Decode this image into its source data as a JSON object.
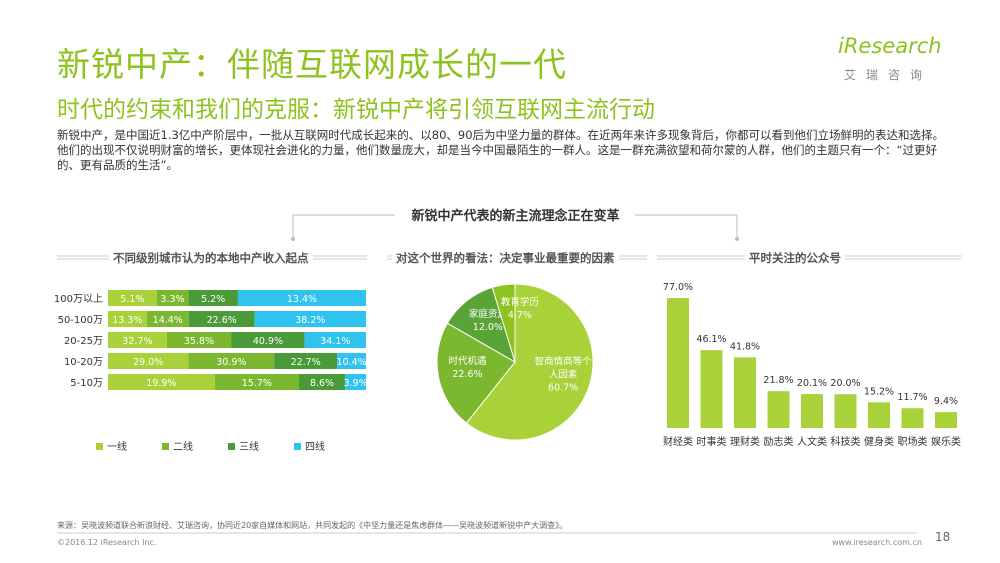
{
  "header": {
    "title": "新锐中产：伴随互联网成长的一代",
    "subtitle": "时代的约束和我们的克服：新锐中产将引领互联网主流行动",
    "logo_word": "iResearch",
    "logo_cn": "艾瑞咨询"
  },
  "intro": "新锐中产，是中国近1.3亿中产阶层中，一批从互联网时代成长起来的、以80、90后为中坚力量的群体。在近两年来许多现象背后，你都可以看到他们立场鲜明的表达和选择。他们的出现不仅说明财富的增长，更体现社会进化的力量，他们数量庞大，却是当今中国最陌生的一群人。这是一群充满欲望和荷尔蒙的人群，他们的主题只有一个：“过更好的、更有品质的生活”。",
  "center_heading": "新锐中产代表的新主流理念正在变革",
  "colors": {
    "tier1": "#a9d13a",
    "tier2": "#7cb82f",
    "tier3": "#4a9a38",
    "tier4": "#30c3f0",
    "accent": "#8dc21f",
    "bar": "#a9d13a"
  },
  "chart_data": [
    {
      "type": "bar",
      "orientation": "horizontal",
      "stacked": true,
      "title": "不同级别城市认为的本地中产收入起点",
      "categories": [
        "100万以上",
        "50-100万",
        "20-25万",
        "10-20万",
        "5-10万"
      ],
      "series": [
        {
          "name": "一线",
          "color": "#a9d13a",
          "values": [
            5.1,
            13.3,
            32.7,
            29.0,
            19.9
          ],
          "labels": [
            "5.1%",
            "13.3%",
            "32.7%",
            "29.0%",
            "19.9%"
          ]
        },
        {
          "name": "二线",
          "color": "#7cb82f",
          "values": [
            3.3,
            14.4,
            35.8,
            30.9,
            15.7
          ],
          "labels": [
            "3.3%",
            "14.4%",
            "35.8%",
            "30.9%",
            "15.7%"
          ]
        },
        {
          "name": "三线",
          "color": "#4a9a38",
          "values": [
            5.2,
            22.6,
            40.9,
            22.7,
            8.6
          ],
          "labels": [
            "5.2%",
            "22.6%",
            "40.9%",
            "22.7%",
            "8.6%"
          ]
        },
        {
          "name": "四线",
          "color": "#30c3f0",
          "values": [
            13.4,
            38.2,
            34.1,
            10.4,
            3.9
          ],
          "labels": [
            "13.4%",
            "38.2%",
            "34.1%",
            "10.4%",
            "3.9%"
          ]
        }
      ],
      "legend_position": "bottom"
    },
    {
      "type": "pie",
      "title": "对这个世界的看法：决定事业最重要的因素",
      "slices": [
        {
          "label": "智商情商等个人因素",
          "line1": "智商情商等个",
          "line2": "人因素",
          "value": 60.7,
          "value_label": "60.7%",
          "color": "#a9d13a"
        },
        {
          "label": "时代机遇",
          "line1": "时代机遇",
          "line2": "",
          "value": 22.6,
          "value_label": "22.6%",
          "color": "#7cb82f"
        },
        {
          "label": "家庭资源",
          "line1": "家庭资源",
          "line2": "",
          "value": 12.0,
          "value_label": "12.0%",
          "color": "#5aa336"
        },
        {
          "label": "教育学历",
          "line1": "教育学历",
          "line2": "",
          "value": 4.7,
          "value_label": "4.7%",
          "color": "#8dc21f"
        }
      ]
    },
    {
      "type": "bar",
      "orientation": "vertical",
      "title": "平时关注的公众号",
      "categories": [
        "财经类",
        "时事类",
        "理财类",
        "励志类",
        "人文类",
        "科技类",
        "健身类",
        "职场类",
        "娱乐类"
      ],
      "values": [
        77.0,
        46.1,
        41.8,
        21.8,
        20.1,
        20.0,
        15.2,
        11.7,
        9.4
      ],
      "value_labels": [
        "77.0%",
        "46.1%",
        "41.8%",
        "21.8%",
        "20.1%",
        "20.0%",
        "15.2%",
        "11.7%",
        "9.4%"
      ],
      "ylim": [
        0,
        77
      ]
    }
  ],
  "footer": {
    "source": "来源：吴晓波频道联合新浪财经、艾瑞咨询，协同近20家自媒体和网站，共同发起的《中坚力量还是焦虑群体——吴晓波频道新锐中产大调查》。",
    "copyright": "©2016.12 iResearch Inc.",
    "url": "www.iresearch.com.cn",
    "page": "18"
  }
}
